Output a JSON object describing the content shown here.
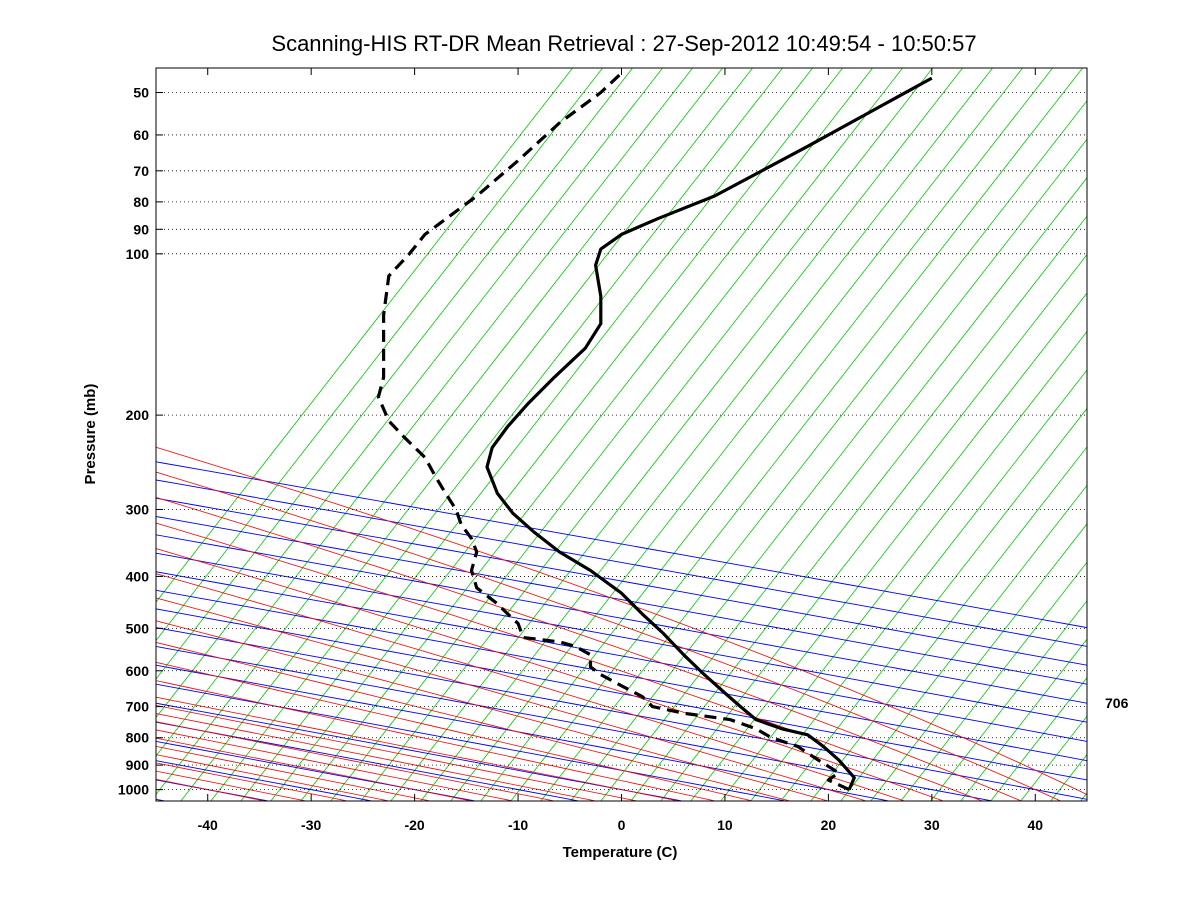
{
  "chart_data": {
    "type": "line",
    "title": "Scanning-HIS RT-DR Mean Retrieval : 27-Sep-2012 10:49:54 - 10:50:57",
    "xlabel": "Temperature (C)",
    "ylabel": "Pressure (mb)",
    "xlim": [
      -45,
      45
    ],
    "ylim": [
      1050,
      45
    ],
    "y_scale": "log",
    "x_ticks": [
      -40,
      -30,
      -20,
      -10,
      0,
      10,
      20,
      30,
      40
    ],
    "y_ticks": [
      50,
      60,
      70,
      80,
      90,
      100,
      200,
      300,
      400,
      500,
      600,
      700,
      800,
      900,
      1000
    ],
    "grid": "dotted horizontal lines at pressure ticks",
    "side_label": "706",
    "colors": {
      "dry_adiabats": "#0000ff",
      "moist_adiabats": "#ff0000",
      "isotherms_skewed": "#00cc00",
      "temperature": "#000000",
      "dewpoint": "#000000"
    },
    "series": [
      {
        "style": "solid",
        "x": [
          22.0,
          22.5,
          21.0,
          19.5,
          18.0,
          15.5,
          13.0,
          11.5,
          10.0,
          8.0,
          6.0,
          4.0,
          2.0,
          0.0,
          -3.0,
          -6.0,
          -8.5,
          -10.5,
          -12.0,
          -13.0,
          -12.5,
          -11.0,
          -9.0,
          -6.5,
          -3.5,
          -2.0,
          -2.0,
          -2.5,
          -2.0,
          0.0,
          3.5,
          9.0,
          18.0,
          30.0
        ],
        "y": [
          1000,
          950,
          880,
          830,
          790,
          770,
          740,
          700,
          660,
          610,
          560,
          510,
          470,
          430,
          390,
          360,
          330,
          305,
          280,
          250,
          230,
          210,
          190,
          170,
          150,
          135,
          120,
          105,
          98,
          92,
          86,
          78,
          63,
          47
        ]
      },
      {
        "style": "dashed",
        "x": [
          22.0,
          20.0,
          21.0,
          19.0,
          17.0,
          14.5,
          13.0,
          10.5,
          6.0,
          3.0,
          2.0,
          0.0,
          -2.0,
          -3.0,
          -3.0,
          -4.5,
          -6.0,
          -9.5,
          -10.0,
          -11.0,
          -12.0,
          -14.0,
          -14.5,
          -14.0,
          -14.5,
          -15.5,
          -16.0,
          -17.0,
          -18.0,
          -19.0,
          -21.0,
          -22.5,
          -23.5,
          -23.0,
          -23.0,
          -23.0,
          -22.5,
          -20.5,
          -19.0,
          -14.0,
          -10.0,
          -6.0,
          -2.0,
          0.0
        ],
        "y": [
          1000,
          960,
          930,
          880,
          830,
          800,
          770,
          740,
          720,
          700,
          670,
          640,
          610,
          590,
          560,
          540,
          530,
          520,
          490,
          470,
          450,
          420,
          390,
          360,
          340,
          320,
          300,
          280,
          260,
          240,
          220,
          205,
          185,
          170,
          150,
          130,
          110,
          100,
          92,
          78,
          67,
          57,
          50,
          46
        ]
      }
    ]
  }
}
